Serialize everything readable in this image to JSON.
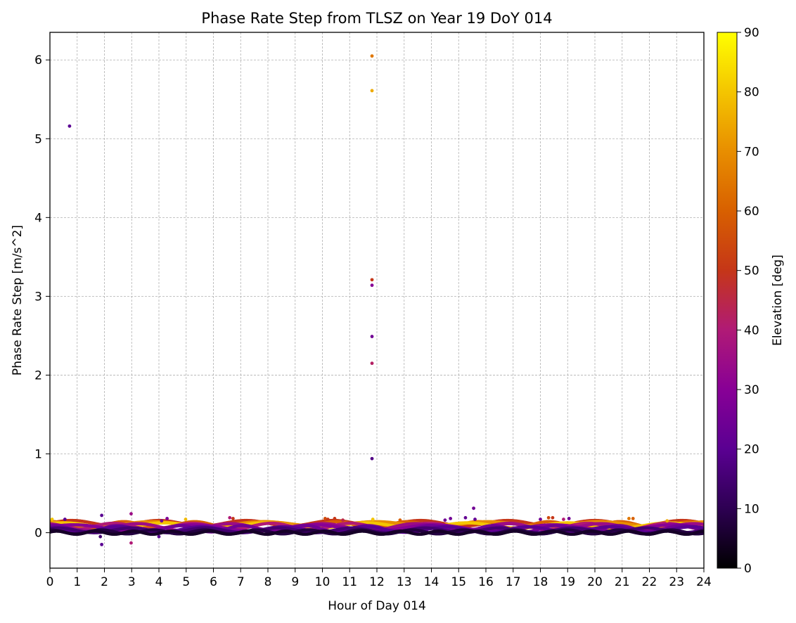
{
  "chart_data": {
    "type": "scatter",
    "title": "Phase Rate Step from TLSZ on Year 19 DoY 014",
    "xlabel": "Hour of Day 014",
    "ylabel": "Phase Rate Step [m/s^2]",
    "xlim": [
      0,
      24
    ],
    "ylim": [
      -0.45,
      6.35
    ],
    "x_ticks": [
      0,
      1,
      2,
      3,
      4,
      5,
      6,
      7,
      8,
      9,
      10,
      11,
      12,
      13,
      14,
      15,
      16,
      17,
      18,
      19,
      20,
      21,
      22,
      23,
      24
    ],
    "x_tick_labels": [
      "0",
      "1",
      "2",
      "3",
      "4",
      "5",
      "6",
      "7",
      "8",
      "9",
      "10",
      "11",
      "12",
      "13",
      "14",
      "15",
      "16",
      "17",
      "18",
      "19",
      "20",
      "21",
      "22",
      "23",
      "24"
    ],
    "y_ticks": [
      0,
      1,
      2,
      3,
      4,
      5,
      6
    ],
    "y_tick_labels": [
      "0",
      "1",
      "2",
      "3",
      "4",
      "5",
      "6"
    ],
    "grid": true,
    "colormap": "gnuplot",
    "colorbar": {
      "label": "Elevation [deg]",
      "range": [
        0,
        90
      ],
      "ticks": [
        0,
        10,
        20,
        30,
        40,
        50,
        60,
        70,
        80,
        90
      ],
      "tick_labels": [
        "0",
        "10",
        "20",
        "30",
        "40",
        "50",
        "60",
        "70",
        "80",
        "90"
      ],
      "colors": [
        "#000000",
        "#2d0052",
        "#5a0092",
        "#880096",
        "#b01a76",
        "#c53618",
        "#d86000",
        "#e88e00",
        "#f4c500",
        "#ffff00"
      ]
    },
    "points_note_outliers": "hour, phase_rate_step, elevation_deg",
    "outliers": [
      [
        0.72,
        5.16,
        20
      ],
      [
        11.82,
        6.05,
        65
      ],
      [
        11.82,
        5.61,
        75
      ],
      [
        11.82,
        3.21,
        50
      ],
      [
        11.82,
        3.14,
        30
      ],
      [
        11.82,
        2.49,
        25
      ],
      [
        11.82,
        2.15,
        42
      ],
      [
        11.82,
        0.94,
        18
      ],
      [
        1.9,
        0.22,
        20
      ],
      [
        2.98,
        0.24,
        35
      ],
      [
        1.85,
        -0.05,
        15
      ],
      [
        1.9,
        -0.15,
        20
      ],
      [
        2.98,
        -0.13,
        40
      ],
      [
        0.08,
        0.17,
        80
      ],
      [
        0.55,
        0.17,
        20
      ],
      [
        4.0,
        -0.05,
        20
      ],
      [
        4.1,
        0.15,
        25
      ],
      [
        4.3,
        0.18,
        28
      ],
      [
        4.98,
        0.17,
        78
      ],
      [
        6.6,
        0.19,
        40
      ],
      [
        6.72,
        0.18,
        50
      ],
      [
        10.1,
        0.18,
        55
      ],
      [
        10.2,
        0.17,
        50
      ],
      [
        10.45,
        0.18,
        50
      ],
      [
        10.75,
        0.16,
        45
      ],
      [
        11.85,
        0.17,
        80
      ],
      [
        12.85,
        0.16,
        60
      ],
      [
        14.5,
        0.16,
        25
      ],
      [
        14.7,
        0.18,
        25
      ],
      [
        15.25,
        0.19,
        22
      ],
      [
        15.55,
        0.31,
        25
      ],
      [
        15.6,
        0.17,
        22
      ],
      [
        18.0,
        0.17,
        25
      ],
      [
        18.3,
        0.19,
        55
      ],
      [
        18.45,
        0.19,
        50
      ],
      [
        18.85,
        0.17,
        40
      ],
      [
        19.05,
        0.18,
        25
      ],
      [
        21.25,
        0.18,
        65
      ],
      [
        21.4,
        0.18,
        60
      ],
      [
        22.65,
        0.15,
        75
      ]
    ],
    "dense_bands": [
      {
        "center": 0.12,
        "amplitude": 0.035,
        "period_hours": 3.2,
        "phase": 0.0,
        "elevation": 50
      },
      {
        "center": 0.1,
        "amplitude": 0.04,
        "period_hours": 2.6,
        "phase": 1.3,
        "elevation": 60
      },
      {
        "center": 0.11,
        "amplitude": 0.03,
        "period_hours": 4.1,
        "phase": 2.1,
        "elevation": 70
      },
      {
        "center": 0.09,
        "amplitude": 0.035,
        "period_hours": 3.7,
        "phase": 0.7,
        "elevation": 80
      },
      {
        "center": 0.08,
        "amplitude": 0.04,
        "period_hours": 2.9,
        "phase": 2.8,
        "elevation": 40
      },
      {
        "center": 0.07,
        "amplitude": 0.045,
        "period_hours": 3.4,
        "phase": 1.9,
        "elevation": 35
      },
      {
        "center": 0.06,
        "amplitude": 0.04,
        "period_hours": 4.4,
        "phase": 0.3,
        "elevation": 30
      },
      {
        "center": 0.05,
        "amplitude": 0.04,
        "period_hours": 2.3,
        "phase": 1.1,
        "elevation": 25
      },
      {
        "center": 0.04,
        "amplitude": 0.035,
        "period_hours": 3.0,
        "phase": 2.5,
        "elevation": 20
      },
      {
        "center": 0.03,
        "amplitude": 0.03,
        "period_hours": 2.7,
        "phase": 0.9,
        "elevation": 15
      },
      {
        "center": 0.01,
        "amplitude": 0.025,
        "period_hours": 1.9,
        "phase": 1.6,
        "elevation": 8
      },
      {
        "center": 0.0,
        "amplitude": 0.02,
        "period_hours": 1.4,
        "phase": 0.4,
        "elevation": 5
      }
    ]
  }
}
